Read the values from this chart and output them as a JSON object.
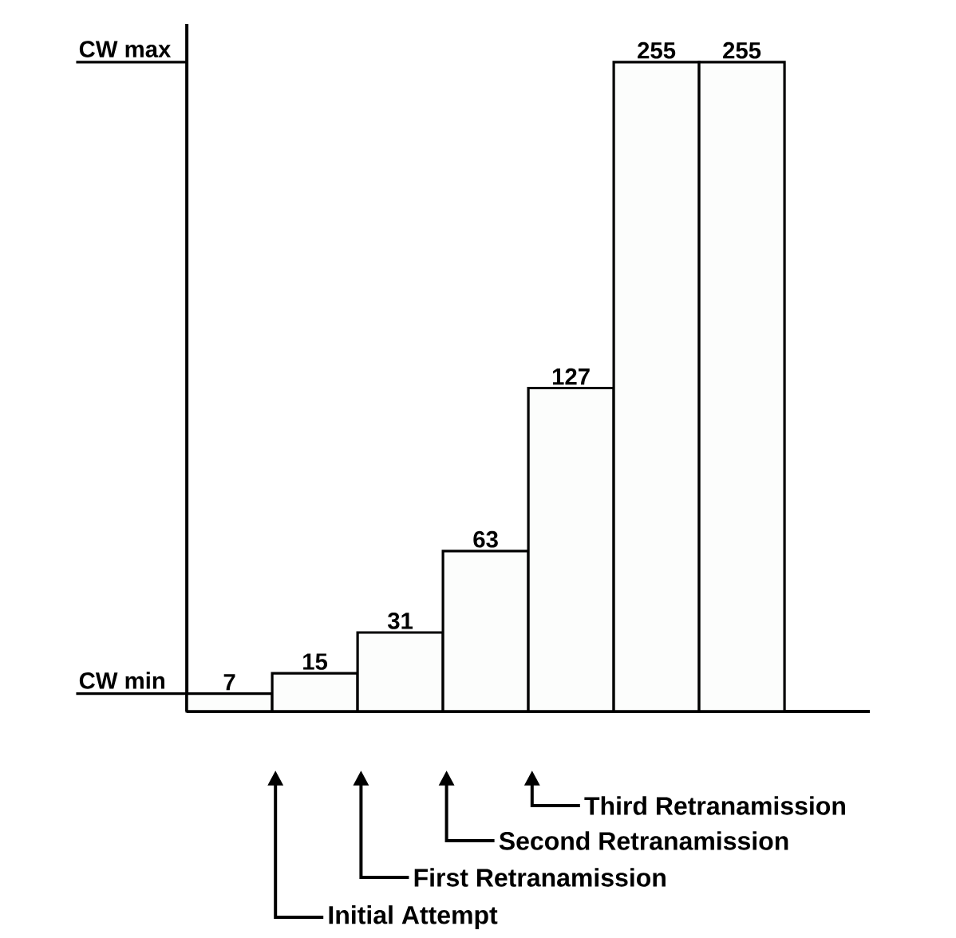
{
  "chart_data": {
    "type": "bar",
    "categories": [
      null,
      null,
      null,
      null,
      null,
      null,
      null
    ],
    "values": [
      7,
      15,
      31,
      63,
      127,
      255,
      255
    ],
    "color": "#fcfdfc",
    "ylim": [
      0,
      270
    ],
    "ref_lines": [
      {
        "axis": "y",
        "value": 7,
        "label": "CW min"
      },
      {
        "axis": "y",
        "value": 255,
        "label": "CW max"
      }
    ],
    "data_labels": true,
    "annotations": [
      "Initial Attempt",
      "First Retranamission",
      "Second Retranamission",
      "Third Retranamission"
    ]
  }
}
